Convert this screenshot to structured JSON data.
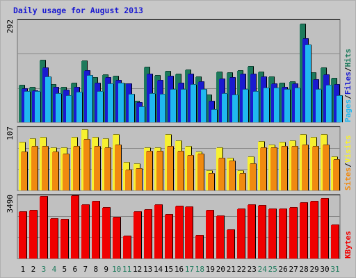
{
  "title": "Daily usage for August 2013",
  "colors": {
    "hits": "#1d7a5c",
    "files": "#1a1ad0",
    "pages": "#20b8f0",
    "visits": "#f7f030",
    "sites": "#f08a10",
    "kbytes": "#f00000",
    "weekend_label": "#1d7a5c",
    "weekday_label": "#000000"
  },
  "chart_data": [
    {
      "type": "bar",
      "panel": "hits-files-pages",
      "ylabel_parts": [
        "Pages",
        "/",
        "Files",
        "/",
        "Hits"
      ],
      "ymax_label": "292",
      "ylim": [
        0,
        292
      ],
      "categories": [
        "1",
        "2",
        "3",
        "4",
        "5",
        "6",
        "7",
        "8",
        "9",
        "10",
        "11",
        "12",
        "13",
        "14",
        "15",
        "16",
        "17",
        "18",
        "19",
        "20",
        "21",
        "22",
        "23",
        "24",
        "25",
        "26",
        "27",
        "28",
        "29",
        "30",
        "31"
      ],
      "weekend_days": [
        3,
        4,
        10,
        11,
        17,
        18,
        24,
        25,
        31
      ],
      "series": [
        {
          "name": "Hits",
          "values": [
            105,
            100,
            177,
            108,
            100,
            112,
            175,
            128,
            135,
            132,
            110,
            60,
            157,
            133,
            146,
            137,
            150,
            130,
            78,
            143,
            141,
            147,
            160,
            144,
            130,
            112,
            115,
            282,
            142,
            155,
            125
          ]
        },
        {
          "name": "Files",
          "values": [
            95,
            90,
            155,
            100,
            92,
            99,
            148,
            111,
            128,
            120,
            110,
            55,
            137,
            120,
            132,
            112,
            137,
            115,
            60,
            123,
            127,
            137,
            138,
            130,
            110,
            100,
            110,
            240,
            122,
            135,
            107
          ]
        },
        {
          "name": "Pages",
          "values": [
            88,
            88,
            130,
            82,
            75,
            86,
            133,
            87,
            110,
            111,
            79,
            43,
            82,
            79,
            94,
            94,
            107,
            93,
            35,
            82,
            78,
            93,
            88,
            98,
            98,
            93,
            98,
            221,
            94,
            106,
            75
          ]
        }
      ]
    },
    {
      "type": "bar",
      "panel": "visits-sites",
      "ylabel_parts": [
        "Sites",
        "/",
        "Visits"
      ],
      "ymax_label": "107",
      "ylim": [
        0,
        107
      ],
      "series": [
        {
          "name": "Visits",
          "values": [
            82,
            88,
            90,
            72,
            72,
            90,
            103,
            90,
            88,
            95,
            48,
            45,
            72,
            72,
            95,
            85,
            75,
            65,
            33,
            72,
            55,
            33,
            57,
            83,
            77,
            82,
            85,
            95,
            90,
            95,
            57
          ]
        },
        {
          "name": "Sites",
          "values": [
            65,
            75,
            75,
            65,
            62,
            75,
            87,
            75,
            72,
            77,
            35,
            37,
            67,
            67,
            75,
            67,
            60,
            62,
            28,
            55,
            50,
            28,
            45,
            72,
            72,
            75,
            75,
            77,
            75,
            77,
            52
          ]
        }
      ]
    },
    {
      "type": "bar",
      "panel": "kbytes",
      "ylabel_parts": [
        "KBytes"
      ],
      "ymax_label": "3490",
      "ylim": [
        0,
        3490
      ],
      "series": [
        {
          "name": "KBytes",
          "values": [
            2605,
            2690,
            3455,
            2195,
            2163,
            3490,
            2985,
            3190,
            2840,
            2300,
            1258,
            2616,
            2711,
            2987,
            2430,
            2900,
            2855,
            1270,
            2660,
            2368,
            1586,
            2746,
            2970,
            2955,
            2753,
            2740,
            2817,
            3120,
            3190,
            3340,
            1875
          ]
        }
      ]
    }
  ]
}
